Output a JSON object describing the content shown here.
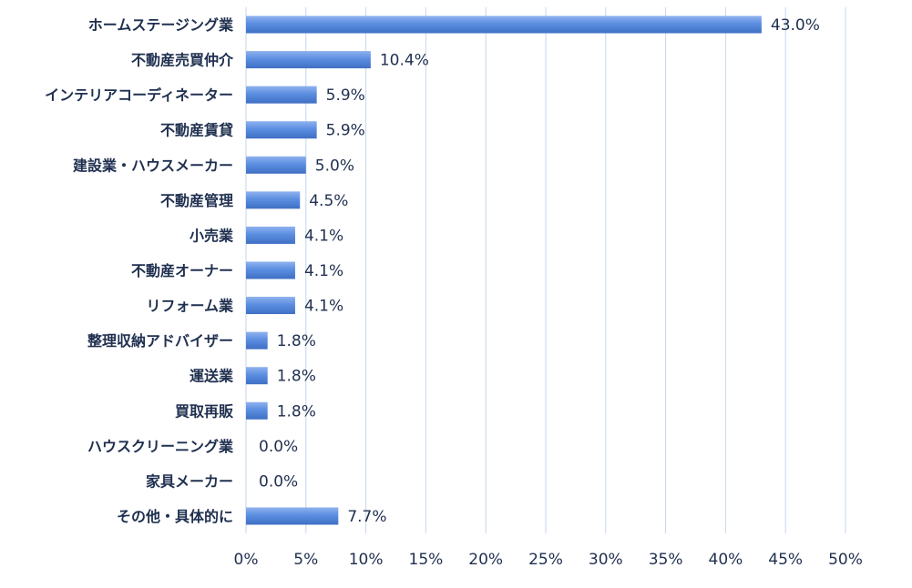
{
  "chart_data": {
    "type": "bar",
    "orientation": "horizontal",
    "categories": [
      "ホームステージング業",
      "不動産売買仲介",
      "インテリアコーディネーター",
      "不動産賃貸",
      "建設業・ハウスメーカー",
      "不動産管理",
      "小売業",
      "不動産オーナー",
      "リフォーム業",
      "整理収納アドバイザー",
      "運送業",
      "買取再販",
      "ハウスクリーニング業",
      "家具メーカー",
      "その他・具体的に"
    ],
    "values": [
      43.0,
      10.4,
      5.9,
      5.9,
      5.0,
      4.5,
      4.1,
      4.1,
      4.1,
      1.8,
      1.8,
      1.8,
      0.0,
      0.0,
      7.7
    ],
    "value_labels": [
      "43.0%",
      "10.4%",
      "5.9%",
      "5.9%",
      "5.0%",
      "4.5%",
      "4.1%",
      "4.1%",
      "4.1%",
      "1.8%",
      "1.8%",
      "1.8%",
      "0.0%",
      "0.0%",
      "7.7%"
    ],
    "x_ticks": [
      0,
      5,
      10,
      15,
      20,
      25,
      30,
      35,
      40,
      45,
      50
    ],
    "x_tick_labels": [
      "0%",
      "5%",
      "10%",
      "15%",
      "20%",
      "25%",
      "30%",
      "35%",
      "40%",
      "45%",
      "50%"
    ],
    "xlim": [
      0,
      50
    ],
    "grid": "vertical",
    "legend": "none",
    "title": "",
    "xlabel": "",
    "ylabel": "",
    "colors": {
      "bar_light": "#8fb2ef",
      "bar_main": "#5b8ee0",
      "bar_dark": "#3f6fc4",
      "grid": "#c6d6ea",
      "text": "#1f2f4f"
    }
  }
}
